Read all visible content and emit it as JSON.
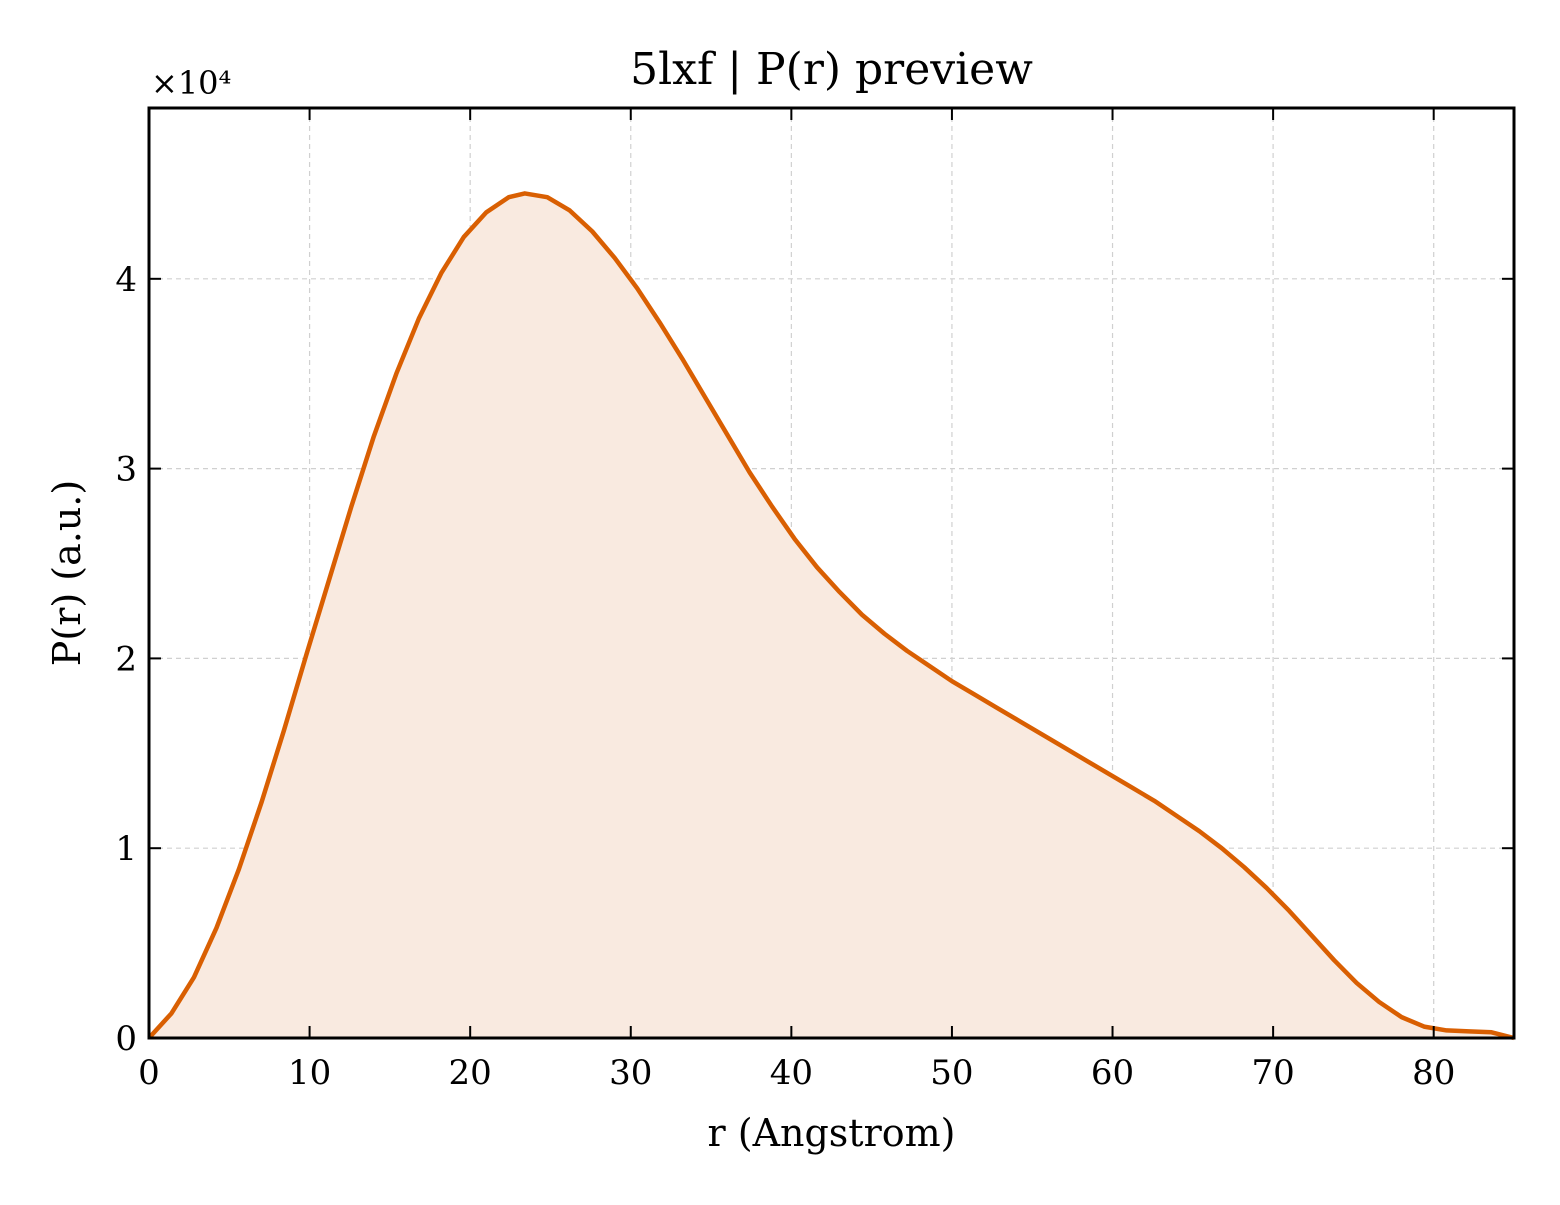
{
  "chart_data": {
    "type": "area",
    "title": "5lxf | P(r) preview",
    "xlabel": "r (Angstrom)",
    "ylabel": "P(r) (a.u.)",
    "y_offset_label": "×10⁴",
    "y_scale_factor": 10000,
    "xlim": [
      0,
      85
    ],
    "ylim": [
      0,
      49000
    ],
    "x_ticks": [
      0,
      10,
      20,
      30,
      40,
      50,
      60,
      70,
      80
    ],
    "x_tick_labels": [
      "0",
      "10",
      "20",
      "30",
      "40",
      "50",
      "60",
      "70",
      "80"
    ],
    "y_ticks": [
      0,
      10000,
      20000,
      30000,
      40000
    ],
    "y_tick_labels": [
      "0",
      "1",
      "2",
      "3",
      "4"
    ],
    "grid": true,
    "colors": {
      "line": "#d95f02",
      "fill": "#f9eae0",
      "grid": "#d0d0d0"
    },
    "series": [
      {
        "x": [
          0,
          1.4,
          2.8,
          4.2,
          5.6,
          7.0,
          8.4,
          9.8,
          11.2,
          12.6,
          14.0,
          15.4,
          16.8,
          18.2,
          19.6,
          21.0,
          22.4,
          23.4,
          24.8,
          26.2,
          27.6,
          29.0,
          30.4,
          31.8,
          33.2,
          34.6,
          36.0,
          37.4,
          38.8,
          40.2,
          41.6,
          43.0,
          44.4,
          45.8,
          47.2,
          48.6,
          50.0,
          51.4,
          52.8,
          54.2,
          55.6,
          57.0,
          58.4,
          59.8,
          61.2,
          62.6,
          64.0,
          65.4,
          66.8,
          68.2,
          69.6,
          71.0,
          72.4,
          73.8,
          75.2,
          76.6,
          78.0,
          79.4,
          80.8,
          82.2,
          83.6,
          85.0
        ],
        "y": [
          0,
          1300,
          3200,
          5800,
          8900,
          12400,
          16200,
          20200,
          24100,
          28000,
          31700,
          35000,
          37900,
          40300,
          42200,
          43500,
          44300,
          44500,
          44300,
          43600,
          42500,
          41100,
          39500,
          37700,
          35800,
          33800,
          31800,
          29800,
          28000,
          26300,
          24800,
          23500,
          22300,
          21300,
          20400,
          19600,
          18800,
          18100,
          17400,
          16700,
          16000,
          15300,
          14600,
          13900,
          13200,
          12500,
          11700,
          10900,
          10000,
          9000,
          7900,
          6700,
          5400,
          4100,
          2900,
          1900,
          1100,
          600,
          400,
          350,
          300,
          0
        ]
      }
    ]
  }
}
